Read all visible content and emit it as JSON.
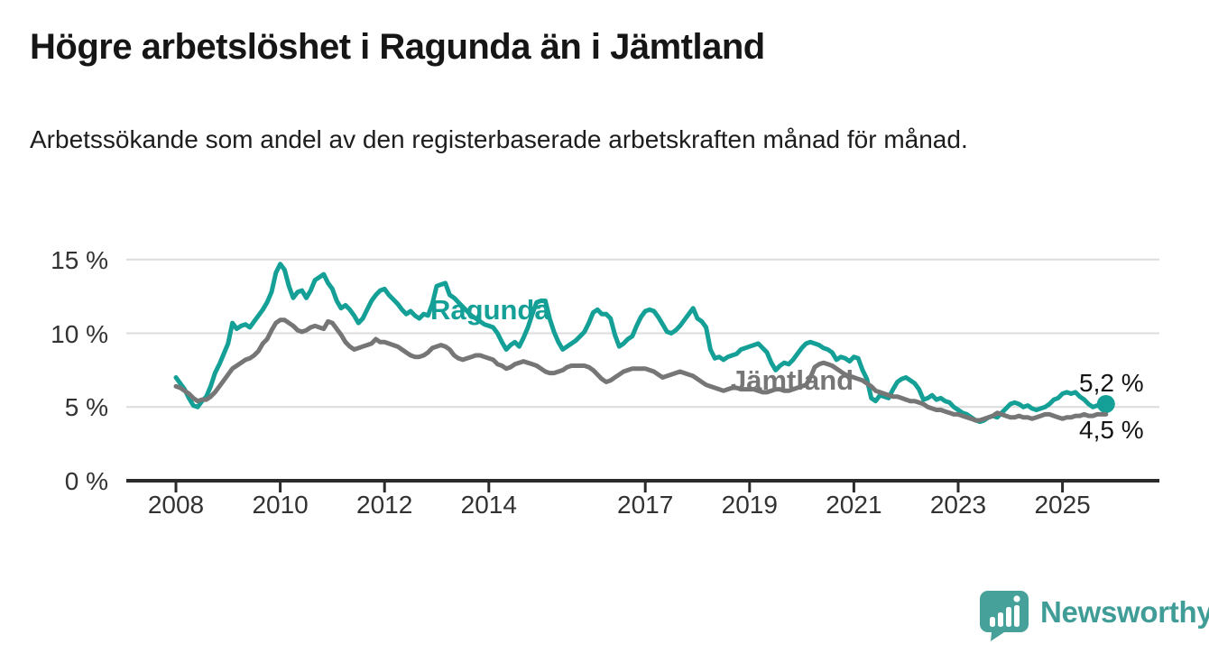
{
  "header": {
    "title": "Högre arbetslöshet i Ragunda än i Jämtland",
    "subtitle": "Arbetssökande som andel av den registerbaserade arbetskraften månad för månad."
  },
  "chart_data": {
    "type": "line",
    "unit": "%",
    "grid": "horizontal gridlines at 5, 10, 15",
    "legend_position": "inline labels on lines",
    "x_start_year": 2008,
    "x_months_per_point": 1,
    "x_tick_years": [
      2008,
      2010,
      2012,
      2014,
      2017,
      2019,
      2021,
      2023,
      2025
    ],
    "x_tick_labels": [
      "2008",
      "2010",
      "2012",
      "2014",
      "2017",
      "2019",
      "2021",
      "2023",
      "2025"
    ],
    "y_tick_values": [
      0,
      5,
      10,
      15
    ],
    "y_tick_labels": [
      "0 %",
      "5 %",
      "10 %",
      "15 %"
    ],
    "ylim": [
      0,
      15.5
    ],
    "series": [
      {
        "name": "Ragunda",
        "color": "#14a096",
        "end_label": "5,2 %",
        "end_value": 5.2,
        "end_dot": true,
        "values": [
          7.0,
          6.6,
          6.2,
          5.6,
          5.1,
          5.0,
          5.4,
          5.7,
          6.4,
          7.3,
          7.9,
          8.6,
          9.3,
          10.7,
          10.3,
          10.5,
          10.6,
          10.4,
          10.8,
          11.2,
          11.6,
          12.1,
          12.8,
          14.1,
          14.7,
          14.3,
          13.2,
          12.4,
          12.8,
          12.9,
          12.4,
          12.9,
          13.6,
          13.8,
          14.0,
          13.4,
          13.0,
          12.2,
          11.7,
          11.9,
          11.6,
          11.2,
          10.7,
          11.0,
          11.6,
          12.2,
          12.6,
          12.9,
          13.0,
          12.6,
          12.3,
          12.0,
          11.6,
          11.3,
          11.5,
          11.2,
          11.0,
          11.3,
          11.2,
          12.0,
          13.2,
          13.3,
          13.4,
          12.6,
          12.4,
          12.1,
          11.8,
          11.5,
          11.2,
          11.0,
          10.8,
          10.6,
          10.5,
          10.4,
          10.0,
          9.4,
          8.9,
          9.2,
          9.4,
          9.1,
          9.7,
          10.4,
          11.3,
          12.1,
          12.2,
          12.2,
          11.0,
          10.1,
          9.4,
          8.9,
          9.1,
          9.3,
          9.5,
          9.8,
          10.1,
          10.7,
          11.4,
          11.6,
          11.3,
          11.3,
          11.0,
          9.9,
          9.1,
          9.3,
          9.6,
          9.8,
          10.5,
          11.1,
          11.5,
          11.6,
          11.5,
          11.1,
          10.6,
          10.1,
          10.0,
          10.2,
          10.5,
          10.9,
          11.3,
          11.7,
          11.0,
          10.8,
          10.4,
          8.9,
          8.3,
          8.4,
          8.2,
          8.4,
          8.5,
          8.6,
          8.9,
          9.0,
          9.1,
          9.2,
          9.3,
          9.0,
          8.7,
          8.0,
          7.5,
          7.8,
          8.0,
          7.9,
          8.2,
          8.6,
          9.0,
          9.3,
          9.4,
          9.3,
          9.2,
          9.0,
          8.9,
          8.7,
          8.2,
          8.4,
          8.3,
          8.1,
          8.4,
          8.3,
          7.5,
          6.9,
          5.6,
          5.4,
          5.8,
          5.7,
          5.6,
          6.2,
          6.7,
          6.9,
          7.0,
          6.8,
          6.6,
          6.2,
          5.5,
          5.6,
          5.8,
          5.5,
          5.6,
          5.4,
          5.3,
          5.0,
          4.8,
          4.6,
          4.5,
          4.3,
          4.1,
          4.0,
          4.1,
          4.3,
          4.4,
          4.3,
          4.6,
          4.9,
          5.2,
          5.3,
          5.2,
          5.0,
          5.1,
          4.9,
          4.8,
          4.9,
          5.0,
          5.2,
          5.5,
          5.6,
          5.9,
          6.0,
          5.9,
          6.0,
          5.7,
          5.5,
          5.2,
          5.0,
          5.1,
          5.0,
          5.2
        ]
      },
      {
        "name": "Jämtland",
        "color": "#767676",
        "end_label": "4,5 %",
        "end_value": 4.5,
        "end_dot": false,
        "values": [
          6.4,
          6.3,
          6.1,
          5.9,
          5.6,
          5.4,
          5.5,
          5.5,
          5.7,
          6.0,
          6.4,
          6.8,
          7.2,
          7.6,
          7.8,
          8.0,
          8.2,
          8.3,
          8.5,
          8.8,
          9.3,
          9.6,
          10.2,
          10.7,
          10.9,
          10.9,
          10.7,
          10.5,
          10.2,
          10.1,
          10.2,
          10.4,
          10.5,
          10.4,
          10.3,
          10.8,
          10.7,
          10.3,
          9.9,
          9.4,
          9.1,
          8.9,
          9.0,
          9.1,
          9.2,
          9.3,
          9.6,
          9.4,
          9.4,
          9.3,
          9.2,
          9.1,
          8.9,
          8.7,
          8.5,
          8.4,
          8.4,
          8.5,
          8.7,
          9.0,
          9.1,
          9.2,
          9.1,
          8.9,
          8.5,
          8.3,
          8.2,
          8.3,
          8.4,
          8.5,
          8.5,
          8.4,
          8.3,
          8.2,
          7.9,
          7.8,
          7.6,
          7.7,
          7.9,
          8.0,
          8.1,
          8.0,
          7.9,
          7.8,
          7.6,
          7.4,
          7.3,
          7.3,
          7.4,
          7.5,
          7.7,
          7.8,
          7.8,
          7.8,
          7.8,
          7.7,
          7.5,
          7.2,
          6.9,
          6.7,
          6.8,
          7.0,
          7.2,
          7.4,
          7.5,
          7.6,
          7.6,
          7.6,
          7.6,
          7.5,
          7.4,
          7.2,
          7.0,
          7.1,
          7.2,
          7.3,
          7.4,
          7.3,
          7.2,
          7.1,
          6.9,
          6.7,
          6.5,
          6.4,
          6.3,
          6.2,
          6.1,
          6.2,
          6.3,
          6.3,
          6.2,
          6.2,
          6.2,
          6.2,
          6.1,
          6.0,
          6.0,
          6.1,
          6.2,
          6.2,
          6.1,
          6.1,
          6.2,
          6.3,
          6.4,
          6.5,
          7.0,
          7.7,
          7.9,
          8.0,
          7.9,
          7.8,
          7.6,
          7.4,
          7.2,
          7.1,
          7.0,
          6.9,
          6.8,
          6.6,
          6.4,
          6.1,
          6.0,
          5.9,
          5.8,
          5.7,
          5.7,
          5.6,
          5.5,
          5.4,
          5.4,
          5.3,
          5.2,
          5.0,
          4.9,
          4.8,
          4.8,
          4.7,
          4.6,
          4.5,
          4.5,
          4.4,
          4.3,
          4.2,
          4.1,
          4.1,
          4.2,
          4.3,
          4.4,
          4.6,
          4.5,
          4.4,
          4.3,
          4.3,
          4.4,
          4.3,
          4.3,
          4.2,
          4.3,
          4.4,
          4.5,
          4.5,
          4.4,
          4.3,
          4.2,
          4.3,
          4.3,
          4.4,
          4.4,
          4.5,
          4.4,
          4.4,
          4.5,
          4.5,
          4.5
        ]
      }
    ],
    "colors": {
      "accent_teal": "#14a096",
      "line_gray": "#767676",
      "gridline": "#dcdcdc",
      "axis": "#2b2b2b",
      "text_dark": "#161616"
    }
  },
  "footer": {
    "brand": "Newsworthy"
  }
}
